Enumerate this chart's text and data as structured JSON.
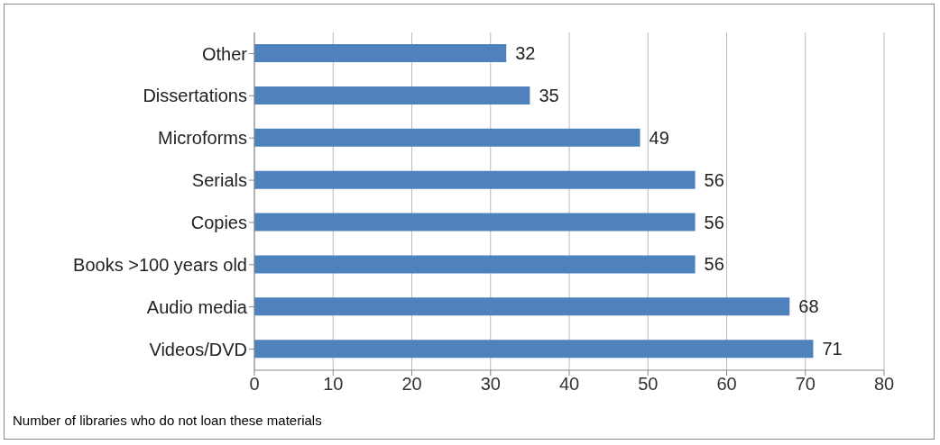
{
  "chart_data": {
    "type": "bar",
    "orientation": "horizontal",
    "categories": [
      "Other",
      "Dissertations",
      "Microforms",
      "Serials",
      "Copies",
      "Books >100 years old",
      "Audio media",
      "Videos/DVD"
    ],
    "values": [
      32,
      35,
      49,
      56,
      56,
      56,
      68,
      71
    ],
    "color": "#4f81bd",
    "xlim": [
      0,
      80
    ],
    "xticks": [
      0,
      10,
      20,
      30,
      40,
      50,
      60,
      70,
      80
    ],
    "grid": "x",
    "data_labels": true,
    "annotations": [
      "Number of libraries who do not loan these materials"
    ]
  }
}
